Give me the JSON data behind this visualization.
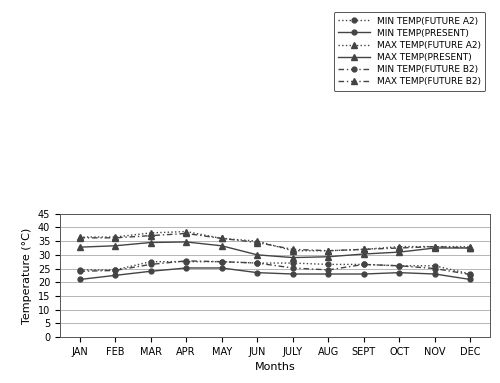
{
  "months": [
    "JAN",
    "FEB",
    "MAR",
    "APR",
    "MAY",
    "JUN",
    "JULY",
    "AUG",
    "SEPT",
    "OCT",
    "NOV",
    "DEC"
  ],
  "min_temp_future_a2": [
    24.5,
    24.5,
    27.5,
    27.5,
    27.5,
    27.0,
    27.0,
    26.5,
    26.5,
    26.0,
    26.0,
    23.0
  ],
  "min_temp_present": [
    21.0,
    22.5,
    24.0,
    25.2,
    25.2,
    23.5,
    23.0,
    23.0,
    23.0,
    23.5,
    23.0,
    21.0
  ],
  "max_temp_future_a2": [
    36.5,
    36.5,
    38.0,
    38.5,
    36.0,
    35.0,
    31.5,
    31.5,
    32.0,
    33.0,
    33.0,
    33.0
  ],
  "max_temp_present": [
    32.8,
    33.3,
    34.5,
    34.7,
    33.3,
    30.0,
    29.0,
    29.3,
    30.3,
    31.0,
    32.5,
    32.5
  ],
  "min_temp_future_b2": [
    24.0,
    24.3,
    26.5,
    27.8,
    27.5,
    27.0,
    25.2,
    24.5,
    26.5,
    26.0,
    25.0,
    22.8
  ],
  "max_temp_future_b2": [
    36.2,
    36.2,
    37.0,
    37.8,
    36.0,
    34.5,
    32.0,
    31.5,
    32.0,
    32.5,
    33.0,
    32.5
  ],
  "ylabel": "Temperature (°C)",
  "xlabel": "Months",
  "ylim": [
    0,
    45
  ],
  "yticks": [
    0,
    5,
    10,
    15,
    20,
    25,
    30,
    35,
    40,
    45
  ],
  "legend_labels": [
    "MIN TEMP(FUTURE A2)",
    "MIN TEMP(PRESENT)",
    "MAX TEMP(FUTURE A2)",
    "MAX TEMP(PRESENT)",
    "MIN TEMP(FUTURE B2)",
    "MAX TEMP(FUTURE B2)"
  ],
  "line_color": "#444444",
  "bg_color": "#ffffff"
}
